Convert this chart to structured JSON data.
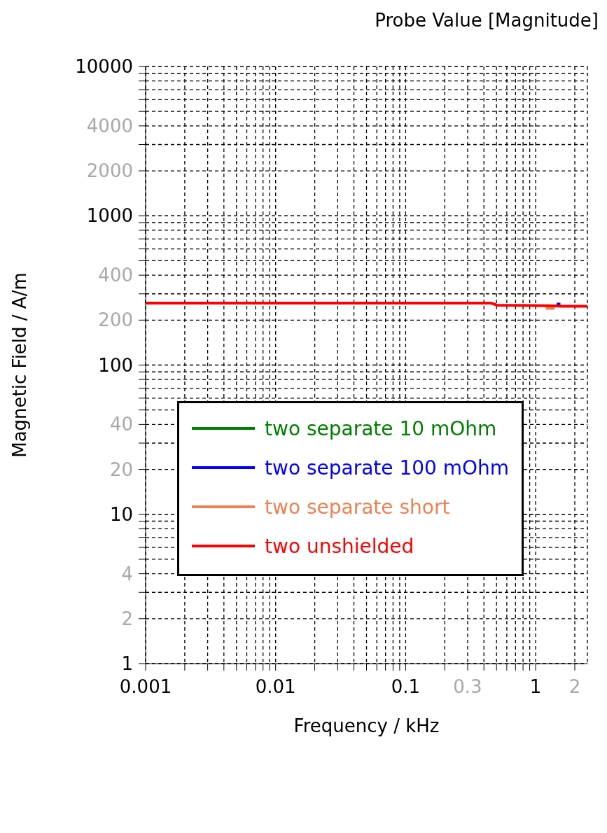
{
  "chart_data": {
    "type": "line",
    "title": "Probe Value [Magnitude]",
    "xlabel": "Frequency / kHz",
    "ylabel": "Magnetic Field / A/m",
    "x": [
      0.001,
      0.1,
      0.45,
      0.48,
      0.5,
      1.2,
      1.4,
      1.45,
      1.55,
      1.6,
      2.5
    ],
    "series": [
      {
        "name": "two separate 10 mOhm",
        "color": "#008000",
        "values": [
          null,
          null,
          null,
          null,
          null,
          null,
          null,
          null,
          null,
          null,
          null
        ]
      },
      {
        "name": "two separate 100 mOhm",
        "color": "#0000ff",
        "values": [
          null,
          null,
          null,
          null,
          null,
          null,
          null,
          256,
          256,
          null,
          null
        ]
      },
      {
        "name": "two separate short",
        "color": "#f08050",
        "values": [
          null,
          null,
          null,
          null,
          null,
          240,
          240,
          null,
          null,
          null,
          null
        ]
      },
      {
        "name": "two unshielded",
        "color": "#ff0000",
        "values": [
          260,
          260,
          260,
          256,
          252,
          250,
          249,
          249,
          248,
          248,
          248
        ]
      }
    ],
    "log": "xy",
    "grid": true,
    "legend": "left",
    "marker": "none",
    "line_style": "solid",
    "xlim": [
      0.001,
      2.5
    ],
    "xticks": [
      0.001,
      {
        "value": 0.002,
        "label": null
      },
      {
        "value": 0.003,
        "label": null
      },
      {
        "value": 0.004,
        "label": null
      },
      {
        "value": 0.005,
        "label": null
      },
      {
        "value": 0.006,
        "label": null
      },
      {
        "value": 0.007,
        "label": null
      },
      {
        "value": 0.008,
        "label": null
      },
      {
        "value": 0.009,
        "label": null
      },
      0.01,
      {
        "value": 0.02,
        "label": null
      },
      {
        "value": 0.03,
        "label": null
      },
      {
        "value": 0.04,
        "label": null
      },
      {
        "value": 0.05,
        "label": null
      },
      {
        "value": 0.06,
        "label": null
      },
      {
        "value": 0.07,
        "label": null
      },
      {
        "value": 0.08,
        "label": null
      },
      {
        "value": 0.09,
        "label": null
      },
      0.1,
      {
        "value": 0.2,
        "label": null
      },
      0.3,
      {
        "value": 0.4,
        "label": null
      },
      {
        "value": 0.5,
        "label": null
      },
      {
        "value": 0.6,
        "label": null
      },
      {
        "value": 0.7,
        "label": null
      },
      {
        "value": 0.8,
        "label": null
      },
      {
        "value": 0.9,
        "label": null
      },
      1,
      2
    ],
    "ylim": [
      1,
      10000
    ],
    "yticks": [
      1,
      2,
      {
        "value": 3,
        "label": null
      },
      4,
      {
        "value": 5,
        "label": null
      },
      {
        "value": 6,
        "label": null
      },
      {
        "value": 7,
        "label": null
      },
      {
        "value": 8,
        "label": null
      },
      {
        "value": 9,
        "label": null
      },
      10,
      20,
      {
        "value": 30,
        "label": null
      },
      40,
      {
        "value": 50,
        "label": null
      },
      {
        "value": 60,
        "label": null
      },
      {
        "value": 70,
        "label": null
      },
      {
        "value": 80,
        "label": null
      },
      {
        "value": 90,
        "label": null
      },
      100,
      200,
      {
        "value": 300,
        "label": null
      },
      400,
      {
        "value": 500,
        "label": null
      },
      {
        "value": 600,
        "label": null
      },
      {
        "value": 700,
        "label": null
      },
      {
        "value": 800,
        "label": null
      },
      {
        "value": 900,
        "label": null
      },
      1000,
      2000,
      {
        "value": 3000,
        "label": null
      },
      4000,
      {
        "value": 5000,
        "label": null
      },
      {
        "value": 6000,
        "label": null
      },
      {
        "value": 7000,
        "label": null
      },
      {
        "value": 8000,
        "label": null
      },
      {
        "value": 9000,
        "label": null
      },
      10000
    ]
  }
}
